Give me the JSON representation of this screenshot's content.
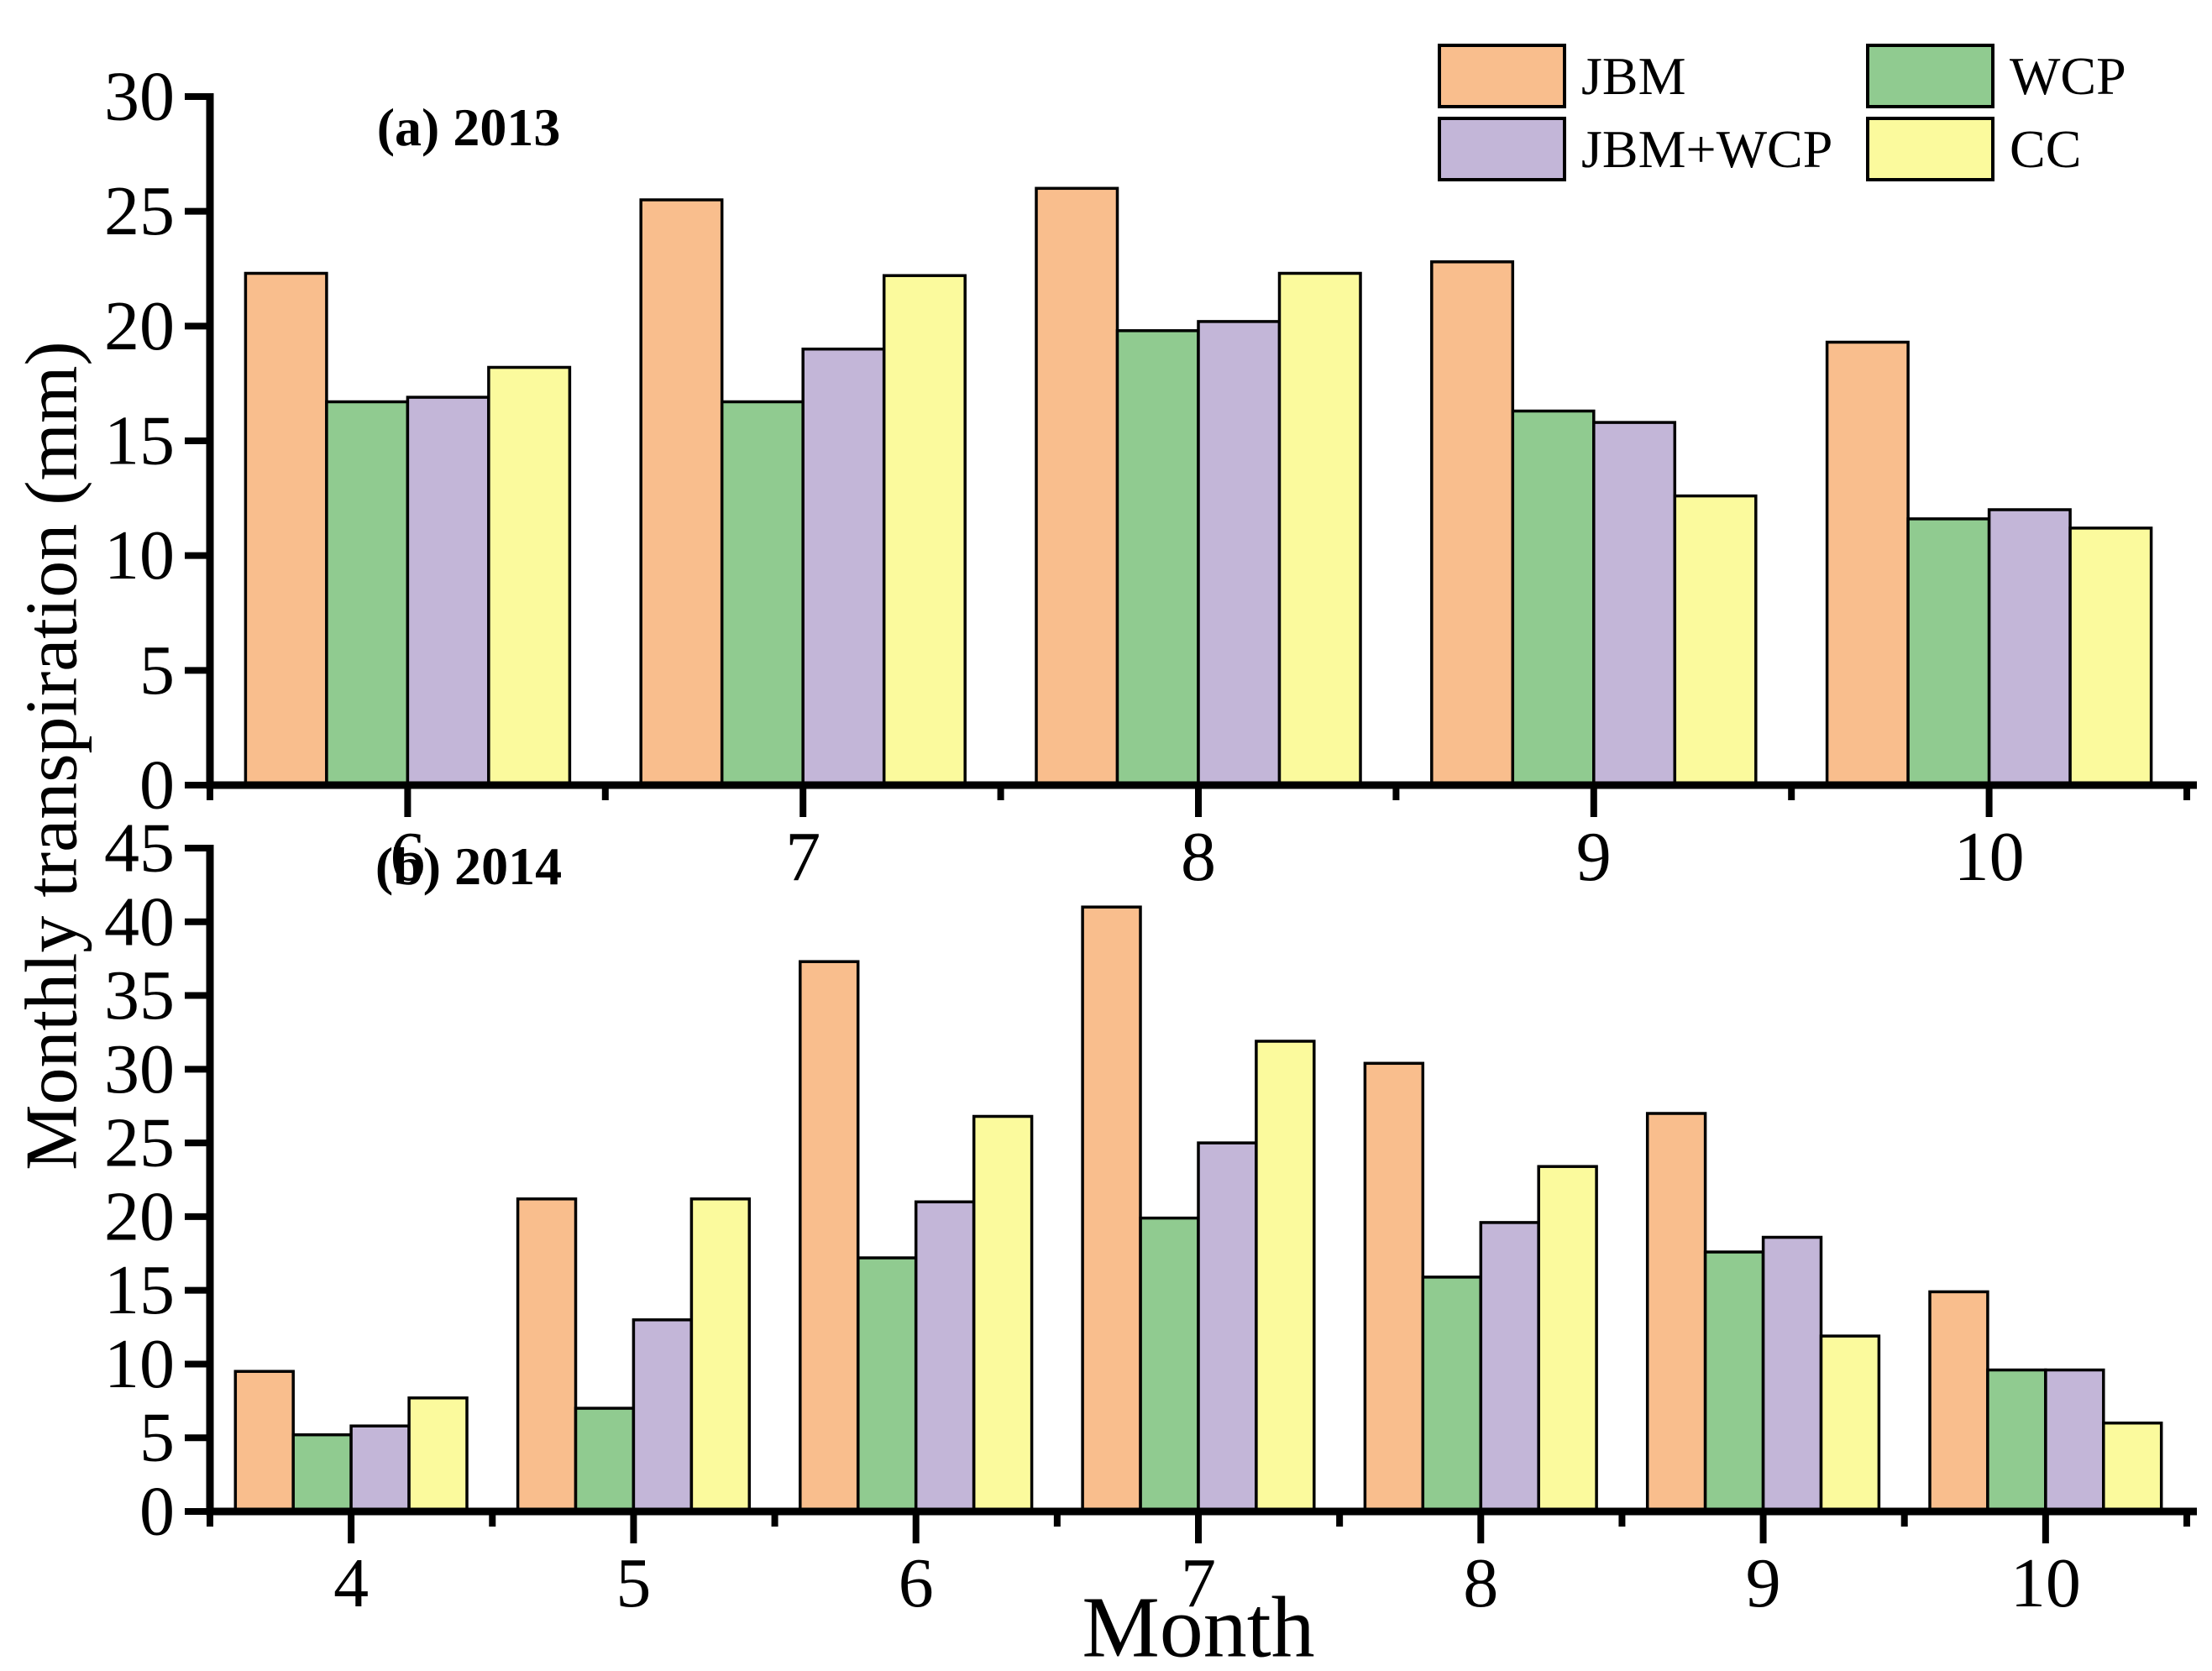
{
  "figure": {
    "ylabel": "Monthly transpiration (mm)",
    "xlabel": "Month",
    "background_color": "#ffffff",
    "axis_color": "#000000",
    "text_color": "#000000"
  },
  "legend": {
    "position": "top-right",
    "items": [
      "JBM",
      "WCP",
      "JBM+WCP",
      "CC"
    ]
  },
  "chart_data": [
    {
      "type": "bar",
      "panel_label": "(a) 2013",
      "x_categories": [
        "6",
        "7",
        "8",
        "9",
        "10"
      ],
      "series": [
        {
          "name": "JBM",
          "color": "#F9BE8D",
          "values": [
            22.3,
            25.5,
            26.0,
            22.8,
            19.3
          ]
        },
        {
          "name": "WCP",
          "color": "#90CB90",
          "values": [
            16.7,
            16.7,
            19.8,
            16.3,
            11.6
          ]
        },
        {
          "name": "JBM+WCP",
          "color": "#C3B6D8",
          "values": [
            16.9,
            19.0,
            20.2,
            15.8,
            12.0
          ]
        },
        {
          "name": "CC",
          "color": "#FBFA9D",
          "values": [
            18.2,
            22.2,
            22.3,
            12.6,
            11.2
          ]
        }
      ],
      "ylim": [
        0,
        45
      ],
      "yaxis_max_shown": 30,
      "ytick_step": 5,
      "ytick_labels": [
        "0",
        "5",
        "10",
        "15",
        "20",
        "25",
        "30"
      ],
      "grid": false,
      "legend_shown": true
    },
    {
      "type": "bar",
      "panel_label": "(b) 2014",
      "x_categories": [
        "4",
        "5",
        "6",
        "7",
        "8",
        "9",
        "10"
      ],
      "series": [
        {
          "name": "JBM",
          "color": "#F9BE8D",
          "values": [
            9.5,
            21.2,
            37.3,
            41.0,
            30.4,
            27.0,
            14.9
          ]
        },
        {
          "name": "WCP",
          "color": "#90CB90",
          "values": [
            5.2,
            7.0,
            17.2,
            19.9,
            15.9,
            17.6,
            9.6
          ]
        },
        {
          "name": "JBM+WCP",
          "color": "#C3B6D8",
          "values": [
            5.8,
            13.0,
            21.0,
            25.0,
            19.6,
            18.6,
            9.6
          ]
        },
        {
          "name": "CC",
          "color": "#FBFA9D",
          "values": [
            7.7,
            21.2,
            26.8,
            31.9,
            23.4,
            11.9,
            6.0
          ]
        }
      ],
      "ylim": [
        0,
        45
      ],
      "yaxis_max_shown": 45,
      "ytick_step": 5,
      "ytick_labels": [
        "0",
        "5",
        "10",
        "15",
        "20",
        "25",
        "30",
        "35",
        "40",
        "45"
      ],
      "grid": false,
      "legend_shown": false
    }
  ]
}
